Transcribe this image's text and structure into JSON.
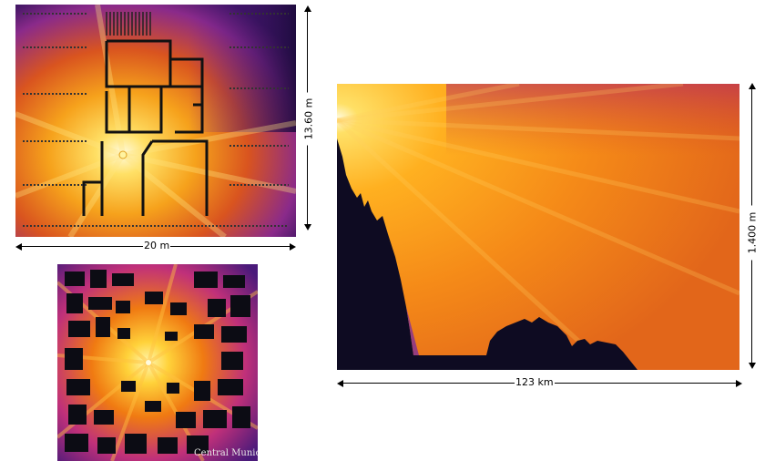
{
  "indoor": {
    "width_label": "20 m",
    "height_label": "13.60 m"
  },
  "city": {
    "caption": "Central Munich"
  },
  "terrain": {
    "width_label": "123 km",
    "height_label": "1.400 m"
  },
  "colors": {
    "dark": "#120a2a",
    "purple": "#6a1fa0",
    "magenta": "#c0307a",
    "orange": "#f07a12",
    "yellow": "#ffd23a",
    "white": "#fffbe0"
  }
}
